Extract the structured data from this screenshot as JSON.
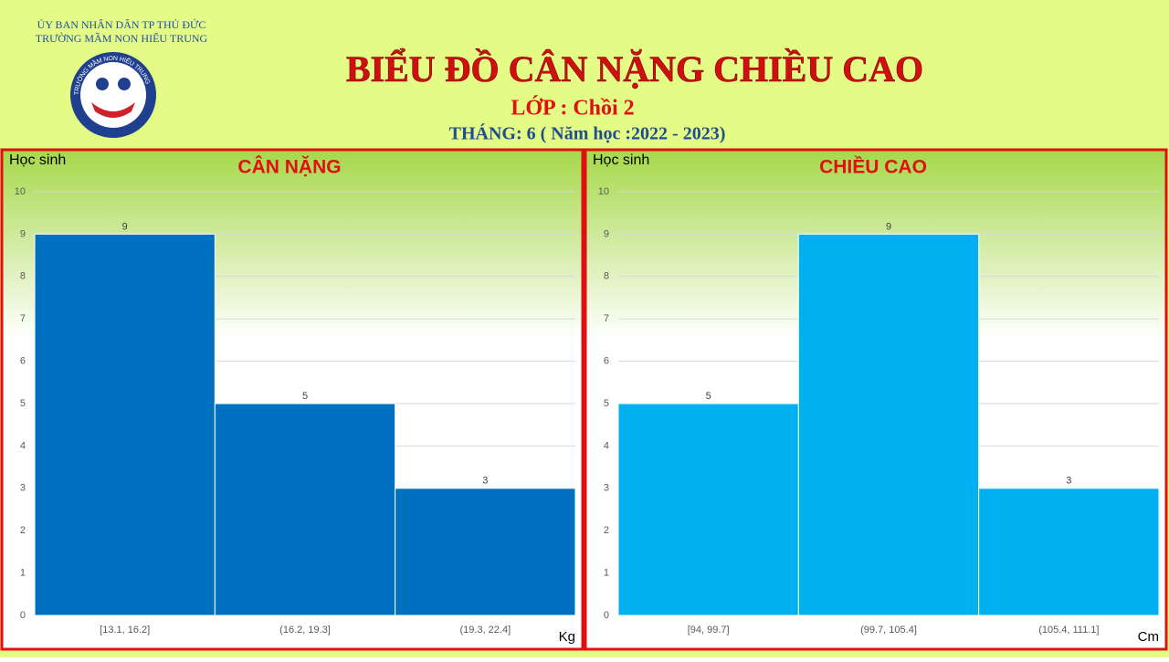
{
  "header": {
    "authority": "ỦY BAN NHÂN DÂN TP THỦ ĐỨC",
    "school": "TRƯỜNG  MẦM  NON  HIẾU  TRUNG",
    "logo_text": "TRƯỜNG MẦM NON HIẾU TRUNG",
    "title": "BIỂU ĐỒ CÂN NẶNG CHIỀU CAO",
    "class_label": "LỚP : Chồi 2",
    "month": "THÁNG:  6 ( Năm học :2022 - 2023)"
  },
  "chart_data": [
    {
      "type": "bar",
      "title": "CÂN NẶNG",
      "y_label": "Học sinh",
      "x_label": "Kg",
      "categories": [
        "[13.1, 16.2]",
        "(16.2, 19.3]",
        "(19.3, 22.4]"
      ],
      "values": [
        9,
        5,
        3
      ],
      "color": "#0070c0",
      "ylim": [
        0,
        10
      ],
      "yticks": [
        0,
        1,
        2,
        3,
        4,
        5,
        6,
        7,
        8,
        9,
        10
      ],
      "grid": true
    },
    {
      "type": "bar",
      "title": "CHIỀU CAO",
      "y_label": "Học sinh",
      "x_label": "Cm",
      "categories": [
        "[94, 99.7]",
        "(99.7, 105.4]",
        "(105.4, 111.1]"
      ],
      "values": [
        5,
        9,
        3
      ],
      "color": "#00b0f0",
      "ylim": [
        0,
        10
      ],
      "yticks": [
        0,
        1,
        2,
        3,
        4,
        5,
        6,
        7,
        8,
        9,
        10
      ],
      "grid": true
    }
  ]
}
